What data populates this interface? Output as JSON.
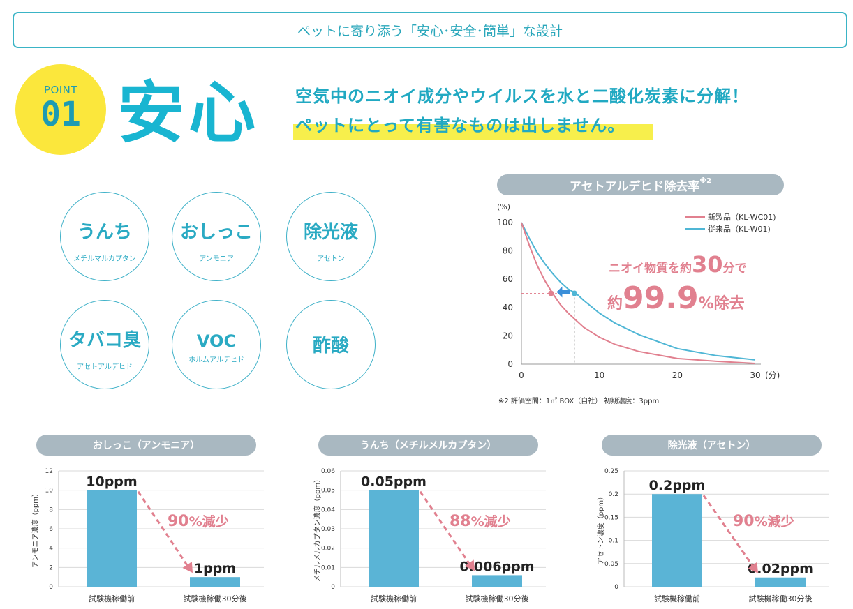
{
  "banner": {
    "text": "ペットに寄り添う「安心･安全･簡単」な設計"
  },
  "point": {
    "label": "POINT",
    "number": "01"
  },
  "title": "安心",
  "lead": {
    "line1": "空気中のニオイ成分やウイルスを水と二酸化炭素に分解！",
    "line2": "ペットにとって有害なものは出しません。"
  },
  "odors": [
    {
      "name": "うんち",
      "sub": "メチルマルカプタン"
    },
    {
      "name": "おしっこ",
      "sub": "アンモニア"
    },
    {
      "name": "除光液",
      "sub": "アセトン"
    },
    {
      "name": "タバコ臭",
      "sub": "アセトアルデヒド"
    },
    {
      "name": "VOC",
      "sub": "ホルムアルデヒド"
    },
    {
      "name": "酢酸",
      "sub": ""
    }
  ],
  "colors": {
    "accent": "#2aaac3",
    "new_product": "#e1808f",
    "old_product": "#4fb6d5",
    "bar": "#5ab4d6",
    "pill": "#a9b8c1",
    "highlight": "#f7ef4c"
  },
  "chart_data": [
    {
      "type": "line",
      "title": "アセトアルデヒド除去率",
      "title_note": "※2",
      "ylabel": "(%)",
      "xlabel": "(分)",
      "xlim": [
        0,
        30
      ],
      "ylim": [
        0,
        100
      ],
      "x_ticks": [
        "0",
        "10",
        "20",
        "30"
      ],
      "y_ticks": [
        "0",
        "20",
        "40",
        "60",
        "80",
        "100"
      ],
      "series": [
        {
          "name": "新製品（KL-WC01)",
          "color": "#e1808f",
          "x": [
            0,
            1,
            2,
            3,
            4,
            5,
            6,
            8,
            10,
            12,
            15,
            20,
            25,
            30
          ],
          "values": [
            100,
            84,
            70,
            59,
            50,
            42,
            36,
            26,
            19,
            14,
            9,
            4,
            2,
            0.5
          ]
        },
        {
          "name": "従来品（KL-W01)",
          "color": "#4fb6d5",
          "x": [
            0,
            1,
            2,
            3,
            4,
            5,
            6,
            7,
            8,
            10,
            12,
            15,
            20,
            25,
            30
          ],
          "values": [
            100,
            89,
            79,
            71,
            64,
            58,
            53,
            50,
            45,
            36,
            29,
            21,
            11,
            6,
            3
          ]
        }
      ],
      "markers": [
        {
          "x": 3.8,
          "y": 50
        },
        {
          "x": 6.8,
          "y": 50
        }
      ],
      "annotation": {
        "prefix": "ニオイ物質を約",
        "value": "30",
        "unit": "分で",
        "prefix2": "約",
        "value2": "99.9",
        "unit2": "%除去"
      },
      "footnote": "※2 評価空間：1㎥ BOX（自社） 初期濃度：3ppm"
    },
    {
      "type": "bar",
      "title": "おしっこ（アンモニア）",
      "ylabel": "アンモニア濃度（ppm）",
      "ylim": [
        0,
        12
      ],
      "y_ticks": [
        "0",
        "2",
        "4",
        "6",
        "8",
        "10",
        "12"
      ],
      "categories": [
        "試験機稼働前",
        "試験機稼働30分後"
      ],
      "values": [
        10,
        1
      ],
      "value_labels": [
        "10ppm",
        "1ppm"
      ],
      "reduction": {
        "value": "90",
        "text": "%減少"
      }
    },
    {
      "type": "bar",
      "title": "うんち（メチルメルカプタン）",
      "ylabel": "メチルメルカプタン濃度（ppm）",
      "ylim": [
        0,
        0.06
      ],
      "y_ticks": [
        "0",
        "0.01",
        "0.02",
        "0.03",
        "0.04",
        "0.05",
        "0.06"
      ],
      "categories": [
        "試験機稼働前",
        "試験機稼働30分後"
      ],
      "values": [
        0.05,
        0.006
      ],
      "value_labels": [
        "0.05ppm",
        "0.006ppm"
      ],
      "reduction": {
        "value": "88",
        "text": "%減少"
      }
    },
    {
      "type": "bar",
      "title": "除光液（アセトン）",
      "ylabel": "アセトン濃度（ppm）",
      "ylim": [
        0,
        0.25
      ],
      "y_ticks": [
        "0",
        "0.05",
        "0.1",
        "0.15",
        "0.2",
        "0.25"
      ],
      "categories": [
        "試験機稼働前",
        "試験機稼働30分後"
      ],
      "values": [
        0.2,
        0.02
      ],
      "value_labels": [
        "0.2ppm",
        "0.02ppm"
      ],
      "reduction": {
        "value": "90",
        "text": "%減少"
      }
    }
  ]
}
